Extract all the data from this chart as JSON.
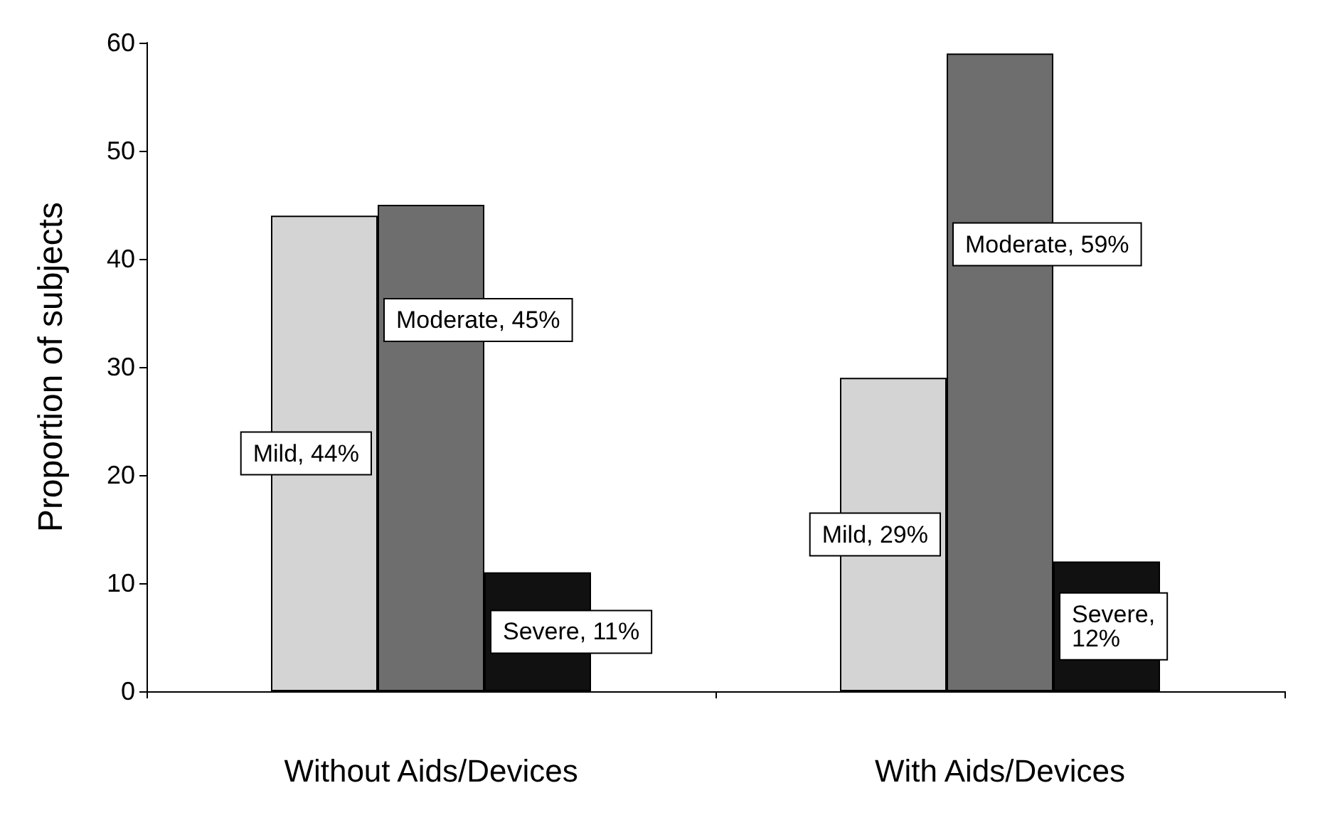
{
  "chart_data": {
    "type": "bar",
    "ylabel": "Proportion of subjects",
    "categories": [
      "Without Aids/Devices",
      "With Aids/Devices"
    ],
    "series": [
      {
        "color": "#d4d4d4",
        "values": [
          44,
          29
        ],
        "value_labels": [
          "Mild, 44%",
          "Mild, 29%"
        ]
      },
      {
        "color": "#6e6e6e",
        "values": [
          45,
          59
        ],
        "value_labels": [
          "Moderate, 45%",
          "Moderate, 59%"
        ]
      },
      {
        "color": "#111111",
        "values": [
          11,
          12
        ],
        "value_labels": [
          "Severe, 11%",
          "Severe,\n12%"
        ]
      }
    ],
    "ylim": [
      0,
      60
    ],
    "yticks": [
      0,
      10,
      20,
      30,
      40,
      50,
      60
    ]
  }
}
